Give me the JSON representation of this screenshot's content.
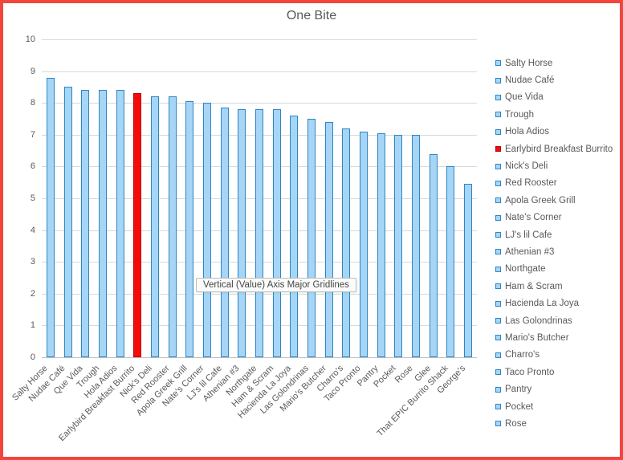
{
  "window": {
    "frame_border_color": "#F2453E",
    "background": "#FFFFFF"
  },
  "chart_data": {
    "type": "bar",
    "title": "One Bite",
    "categories": [
      "Salty Horse",
      "Nudae Café",
      "Que Vida",
      "Trough",
      "Hola Adios",
      "Earlybird Breakfast Burrito",
      "Nick's Deli",
      "Red Rooster",
      "Apola Greek Grill",
      "Nate's Corner",
      "LJ's lil Cafe",
      "Athenian #3",
      "Northgate",
      "Ham & Scram",
      "Hacienda La Joya",
      "Las Golondrinas",
      "Mario's Butcher",
      "Charro's",
      "Taco Pronto",
      "Pantry",
      "Pocket",
      "Rose",
      "Glee",
      "That EPIC Burrito Shack",
      "George's"
    ],
    "values": [
      8.8,
      8.5,
      8.4,
      8.4,
      8.4,
      8.3,
      8.2,
      8.2,
      8.05,
      8.0,
      7.85,
      7.8,
      7.8,
      7.8,
      7.6,
      7.5,
      7.4,
      7.2,
      7.1,
      7.05,
      7.0,
      7.0,
      6.4,
      6.0,
      5.45
    ],
    "highlight_index": 5,
    "xlabel": "",
    "ylabel": "",
    "ylim": [
      0,
      10
    ],
    "yticks": [
      0,
      1,
      2,
      3,
      4,
      5,
      6,
      7,
      8,
      9,
      10
    ],
    "grid": true,
    "legend_position": "right",
    "legend_entries": [
      "Salty Horse",
      "Nudae Café",
      "Que Vida",
      "Trough",
      "Hola Adios",
      "Earlybird Breakfast Burrito",
      "Nick's Deli",
      "Red Rooster",
      "Apola Greek Grill",
      "Nate's Corner",
      "LJ's lil Cafe",
      "Athenian #3",
      "Northgate",
      "Ham & Scram",
      "Hacienda La Joya",
      "Las Golondrinas",
      "Mario's Butcher",
      "Charro's",
      "Taco Pronto",
      "Pantry",
      "Pocket",
      "Rose"
    ],
    "colors": {
      "bar_fill": "#A6D5F5",
      "bar_border": "#2E86C4",
      "highlight_fill": "#F20D0D",
      "highlight_border": "#BF0000",
      "gridline": "#D9D9D9",
      "axis_line": "#BFBFBF",
      "text": "#595959"
    }
  },
  "tooltip": {
    "text": "Vertical (Value) Axis Major Gridlines"
  }
}
